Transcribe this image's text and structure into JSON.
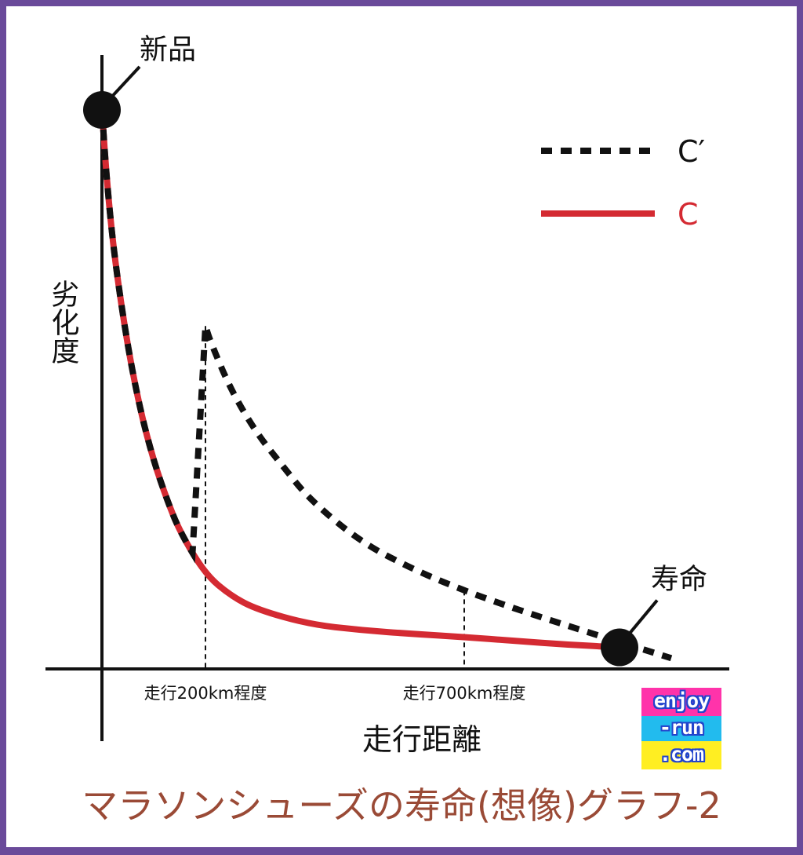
{
  "chart_data": {
    "type": "line",
    "title": "マラソンシューズの寿命(想像)グラフ-2",
    "xlabel": "走行距離",
    "ylabel": "劣化度",
    "xlim": [
      0,
      1000
    ],
    "ylim": [
      0,
      100
    ],
    "x_markers": [
      {
        "label": "走行200km程度",
        "x": 200
      },
      {
        "label": "走行700km程度",
        "x": 700
      }
    ],
    "series": [
      {
        "name": "C",
        "color": "#d42a32",
        "style": "solid",
        "x": [
          0,
          10,
          25,
          50,
          75,
          100,
          125,
          150,
          200,
          250,
          300,
          400,
          500,
          600,
          700,
          800,
          900,
          1000
        ],
        "y": [
          100,
          86,
          72,
          56,
          44,
          35,
          28,
          22,
          14,
          10,
          7.5,
          4.8,
          3.7,
          3.0,
          2.4,
          1.7,
          1.0,
          0.5
        ]
      },
      {
        "name": "C′",
        "color": "#111111",
        "style": "dashed",
        "x": [
          0,
          10,
          25,
          50,
          75,
          100,
          125,
          150,
          200,
          200,
          210,
          250,
          300,
          350,
          400,
          500,
          600,
          700,
          800,
          900,
          1000,
          1100
        ],
        "y": [
          100,
          86,
          72,
          56,
          44,
          35,
          28,
          22,
          14,
          60,
          57,
          48,
          40,
          34,
          28,
          20,
          15,
          11,
          7.6,
          4.5,
          1.5,
          -1.5
        ]
      }
    ],
    "annotations": [
      {
        "label": "新品",
        "x": 0,
        "y": 100
      },
      {
        "label": "寿命",
        "x": 1000,
        "y": 0.5
      }
    ]
  },
  "badge": {
    "line1": "enjoy",
    "line2": "-run",
    "line3": ".com"
  }
}
